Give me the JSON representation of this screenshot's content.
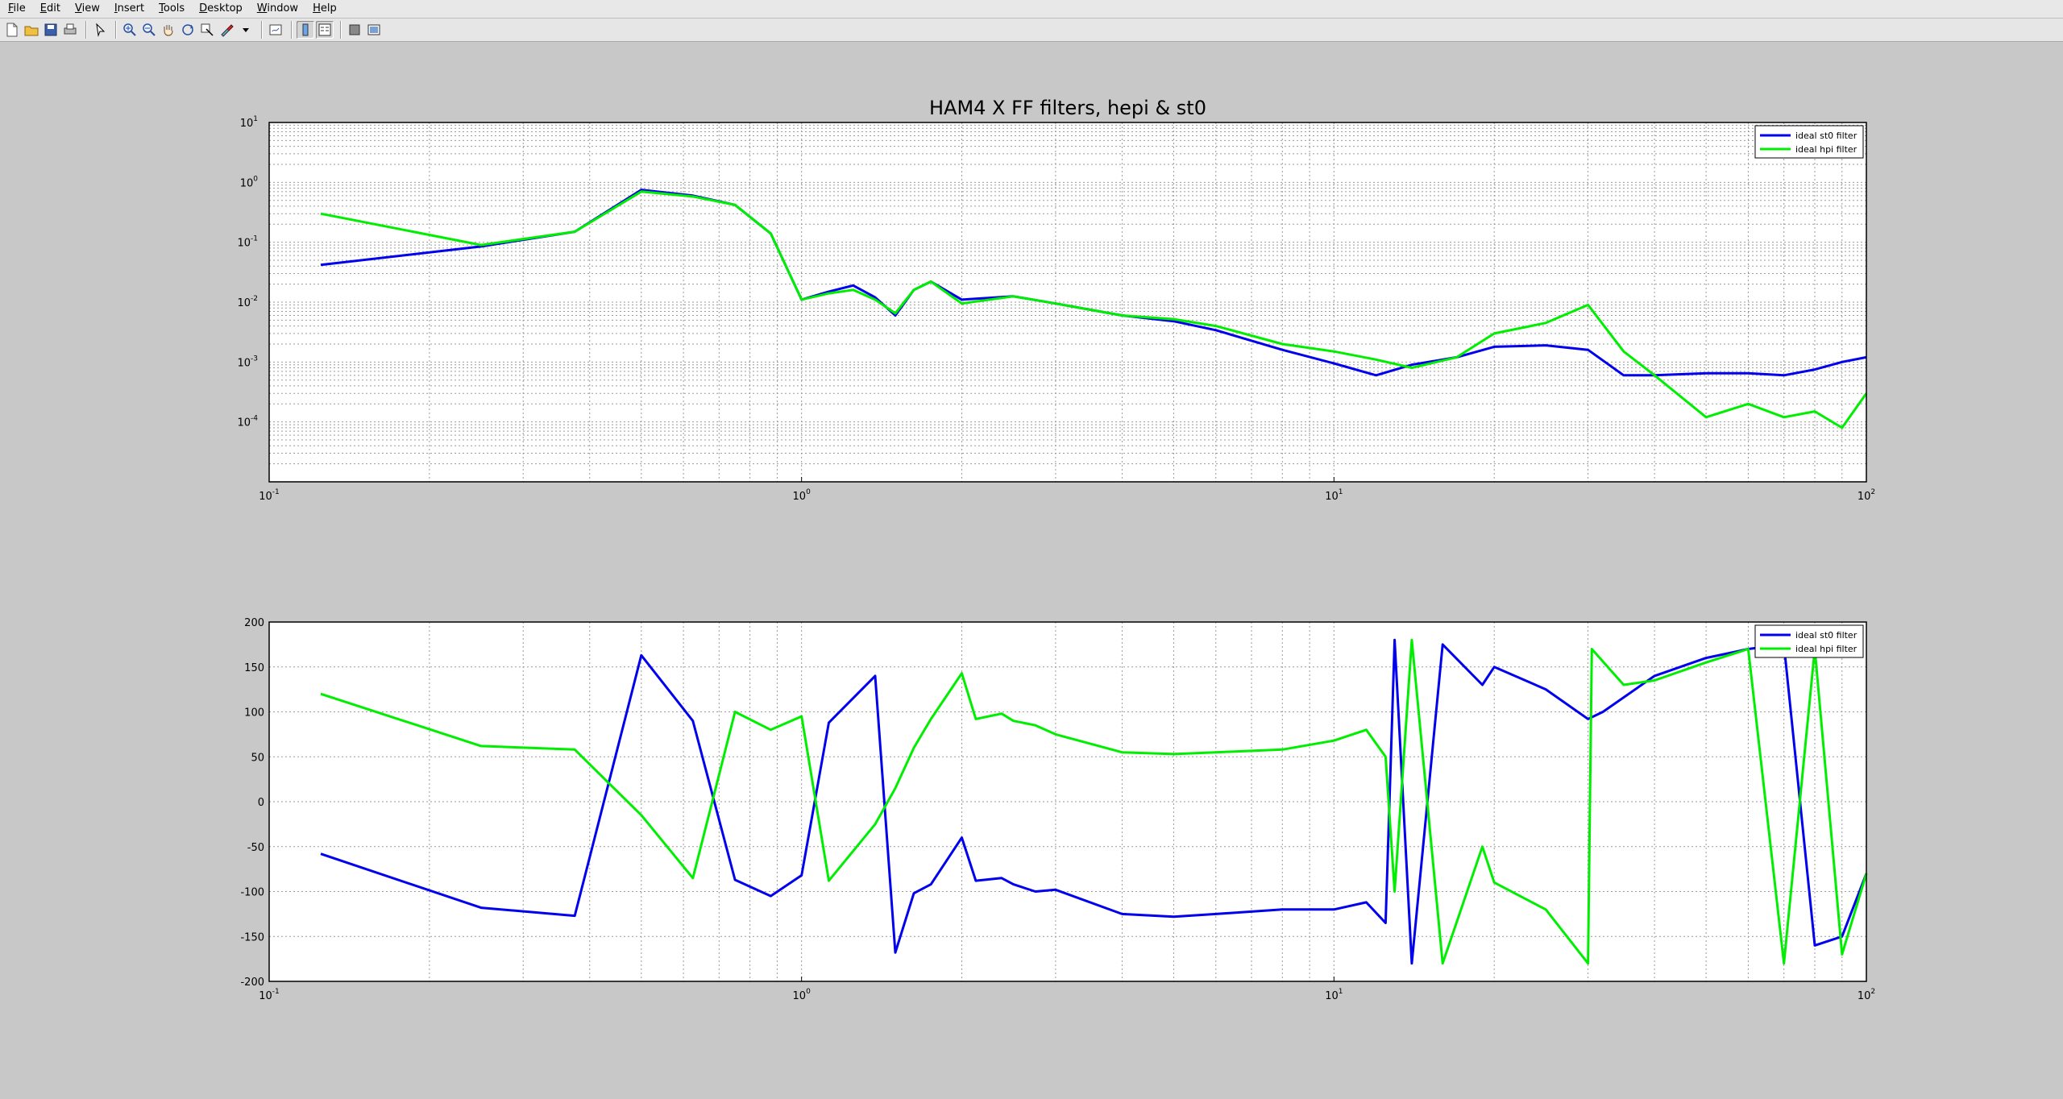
{
  "window": {
    "menu": [
      {
        "label": "File",
        "mnemonic": "F"
      },
      {
        "label": "Edit",
        "mnemonic": "E"
      },
      {
        "label": "View",
        "mnemonic": "V"
      },
      {
        "label": "Insert",
        "mnemonic": "I"
      },
      {
        "label": "Tools",
        "mnemonic": "T"
      },
      {
        "label": "Desktop",
        "mnemonic": "D"
      },
      {
        "label": "Window",
        "mnemonic": "W"
      },
      {
        "label": "Help",
        "mnemonic": "H"
      }
    ],
    "toolbar": [
      {
        "name": "new-figure-icon"
      },
      {
        "name": "open-file-icon"
      },
      {
        "name": "save-figure-icon"
      },
      {
        "name": "print-figure-icon"
      },
      {
        "sep": true
      },
      {
        "name": "edit-plot-arrow-icon"
      },
      {
        "sep": true
      },
      {
        "name": "zoom-in-icon"
      },
      {
        "name": "zoom-out-icon"
      },
      {
        "name": "pan-hand-icon"
      },
      {
        "name": "rotate-3d-icon"
      },
      {
        "name": "data-cursor-icon"
      },
      {
        "name": "brush-icon"
      },
      {
        "name": "brush-dropdown-icon"
      },
      {
        "sep": true
      },
      {
        "name": "link-plot-icon"
      },
      {
        "sep": true
      },
      {
        "name": "insert-colorbar-icon",
        "active": true
      },
      {
        "name": "insert-legend-icon",
        "active": true
      },
      {
        "sep": true
      },
      {
        "name": "hide-plot-tools-icon"
      },
      {
        "name": "show-plot-tools-icon"
      }
    ]
  },
  "colors": {
    "series1": "#0000ee",
    "series2": "#00ee00",
    "grid": "#9a9a9a",
    "figure_bg": "#c8c8c8"
  },
  "chart_data": [
    {
      "type": "line",
      "title": "HAM4 X FF filters, hepi & st0",
      "xscale": "log",
      "yscale": "log",
      "xlim": [
        0.1,
        100
      ],
      "ylim": [
        1e-05,
        10
      ],
      "grid": true,
      "legend_position": "top-right",
      "xticks": [
        {
          "base": "10",
          "exp": "-1"
        },
        {
          "base": "10",
          "exp": "0"
        },
        {
          "base": "10",
          "exp": "1"
        },
        {
          "base": "10",
          "exp": "2"
        }
      ],
      "yticks": [
        {
          "base": "10",
          "exp": "-4"
        },
        {
          "base": "10",
          "exp": "-3"
        },
        {
          "base": "10",
          "exp": "-2"
        },
        {
          "base": "10",
          "exp": "-1"
        },
        {
          "base": "10",
          "exp": "0"
        },
        {
          "base": "10",
          "exp": "1"
        }
      ],
      "series": [
        {
          "name": "ideal st0 filter",
          "x": [
            0.125,
            0.25,
            0.375,
            0.5,
            0.625,
            0.75,
            0.875,
            1.0,
            1.125,
            1.25,
            1.375,
            1.5,
            1.625,
            1.75,
            2.0,
            2.5,
            3,
            4,
            5,
            6,
            8,
            10,
            12,
            14,
            17,
            20,
            25,
            30,
            35,
            40,
            50,
            60,
            70,
            80,
            90,
            100
          ],
          "y": [
            0.042,
            0.085,
            0.15,
            0.75,
            0.6,
            0.42,
            0.14,
            0.011,
            0.015,
            0.019,
            0.012,
            0.006,
            0.016,
            0.022,
            0.011,
            0.0125,
            0.0095,
            0.006,
            0.0048,
            0.0034,
            0.0016,
            0.00095,
            0.0006,
            0.0009,
            0.0012,
            0.0018,
            0.0019,
            0.0016,
            0.0006,
            0.0006,
            0.00065,
            0.00065,
            0.0006,
            0.00075,
            0.001,
            0.0012
          ]
        },
        {
          "name": "ideal hpi filter",
          "x": [
            0.125,
            0.25,
            0.375,
            0.5,
            0.625,
            0.75,
            0.875,
            1.0,
            1.125,
            1.25,
            1.375,
            1.5,
            1.625,
            1.75,
            2.0,
            2.5,
            3,
            4,
            5,
            6,
            8,
            10,
            12,
            14,
            17,
            20,
            25,
            30,
            35,
            40,
            50,
            60,
            70,
            80,
            90,
            100
          ],
          "y": [
            0.3,
            0.09,
            0.15,
            0.7,
            0.58,
            0.42,
            0.14,
            0.011,
            0.014,
            0.016,
            0.011,
            0.0065,
            0.016,
            0.022,
            0.0095,
            0.0125,
            0.0095,
            0.006,
            0.0052,
            0.004,
            0.002,
            0.0015,
            0.0011,
            0.0008,
            0.0012,
            0.003,
            0.0045,
            0.009,
            0.0015,
            0.0006,
            0.00012,
            0.0002,
            0.00012,
            0.00015,
            8e-05,
            0.0003
          ]
        }
      ]
    },
    {
      "type": "line",
      "xscale": "log",
      "xlim": [
        0.1,
        100
      ],
      "ylim": [
        -200,
        200
      ],
      "grid": true,
      "legend_position": "top-right",
      "xticks": [
        {
          "base": "10",
          "exp": "-1"
        },
        {
          "base": "10",
          "exp": "0"
        },
        {
          "base": "10",
          "exp": "1"
        },
        {
          "base": "10",
          "exp": "2"
        }
      ],
      "yticks": [
        "200",
        "150",
        "100",
        "50",
        "0",
        "-50",
        "-100",
        "-150",
        "-200"
      ],
      "series": [
        {
          "name": "ideal st0 filter",
          "x": [
            0.125,
            0.25,
            0.375,
            0.5,
            0.625,
            0.75,
            0.875,
            1.0,
            1.125,
            1.375,
            1.5,
            1.625,
            1.75,
            2.0,
            2.125,
            2.375,
            2.5,
            2.75,
            3.0,
            4,
            5,
            6,
            8,
            10,
            11.5,
            12.5,
            13,
            14,
            16,
            19,
            20,
            25,
            30,
            32,
            40,
            50,
            60,
            70,
            80,
            90,
            100
          ],
          "y": [
            -58,
            -118,
            -127,
            163,
            90,
            -87,
            -105,
            -82,
            88,
            140,
            -168,
            -102,
            -92,
            -40,
            -88,
            -85,
            -92,
            -100,
            -98,
            -125,
            -128,
            -125,
            -120,
            -120,
            -112,
            -135,
            180,
            -180,
            175,
            130,
            150,
            125,
            92,
            100,
            140,
            160,
            170,
            175,
            -160,
            -150,
            -80
          ]
        },
        {
          "name": "ideal hpi filter",
          "x": [
            0.125,
            0.25,
            0.375,
            0.5,
            0.625,
            0.75,
            0.875,
            1.0,
            1.125,
            1.375,
            1.5,
            1.625,
            1.75,
            2.0,
            2.125,
            2.375,
            2.5,
            2.75,
            3.0,
            4,
            5,
            6,
            8,
            10,
            11.5,
            12.5,
            13,
            14,
            16,
            19,
            20,
            25,
            30,
            30.5,
            35,
            40,
            50,
            60,
            70,
            80,
            90,
            100
          ],
          "y": [
            120,
            62,
            58,
            -15,
            -85,
            100,
            80,
            95,
            -88,
            -25,
            15,
            60,
            92,
            143,
            92,
            98,
            90,
            85,
            75,
            55,
            53,
            55,
            58,
            68,
            80,
            50,
            -100,
            180,
            -180,
            -50,
            -90,
            -120,
            -180,
            170,
            130,
            135,
            155,
            170,
            -180,
            170,
            -170,
            -80
          ]
        }
      ]
    }
  ]
}
